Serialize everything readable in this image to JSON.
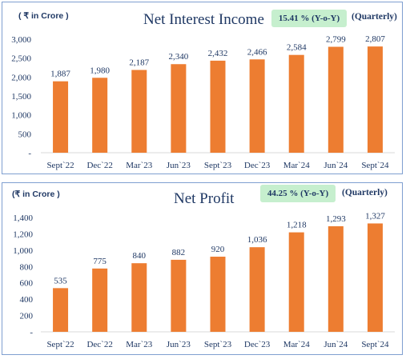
{
  "bar_color": "#ed7d31",
  "text_color": "#1f3864",
  "badge_color": "#c6efce",
  "chart_data": [
    {
      "type": "bar",
      "title": "Net Interest Income",
      "unit_label": "( ₹ in Crore )",
      "growth_badge": "15.41 % (Y-o-Y)",
      "period_label": "(Quarterly)",
      "categories": [
        "Sept`22",
        "Dec`22",
        "Mar`23",
        "Jun`23",
        "Sept`23",
        "Dec`23",
        "Mar`24",
        "Jun`24",
        "Sept`24"
      ],
      "values": [
        1887,
        1980,
        2187,
        2340,
        2432,
        2466,
        2584,
        2799,
        2807
      ],
      "value_labels": [
        "1,887",
        "1,980",
        "2,187",
        "2,340",
        "2,432",
        "2,466",
        "2,584",
        "2,799",
        "2,807"
      ],
      "y_ticks": [
        "-",
        "500",
        "1,000",
        "1,500",
        "2,000",
        "2,500",
        "3,000"
      ],
      "ylim": [
        0,
        3000
      ],
      "grid": false,
      "legend": "none"
    },
    {
      "type": "bar",
      "title": "Net Profit",
      "unit_label": "(₹ in Crore )",
      "growth_badge": "44.25 % (Y-o-Y)",
      "period_label": "(Quarterly)",
      "categories": [
        "Sept`22",
        "Dec`22",
        "Mar`23",
        "Jun`23",
        "Sept`23",
        "Dec`23",
        "Mar`24",
        "Jun`24",
        "Sept`24"
      ],
      "values": [
        535,
        775,
        840,
        882,
        920,
        1036,
        1218,
        1293,
        1327
      ],
      "value_labels": [
        "535",
        "775",
        "840",
        "882",
        "920",
        "1,036",
        "1,218",
        "1,293",
        "1,327"
      ],
      "y_ticks": [
        "-",
        "200",
        "400",
        "600",
        "800",
        "1,000",
        "1,200",
        "1,400"
      ],
      "ylim": [
        0,
        1400
      ],
      "grid": false,
      "legend": "none"
    }
  ]
}
